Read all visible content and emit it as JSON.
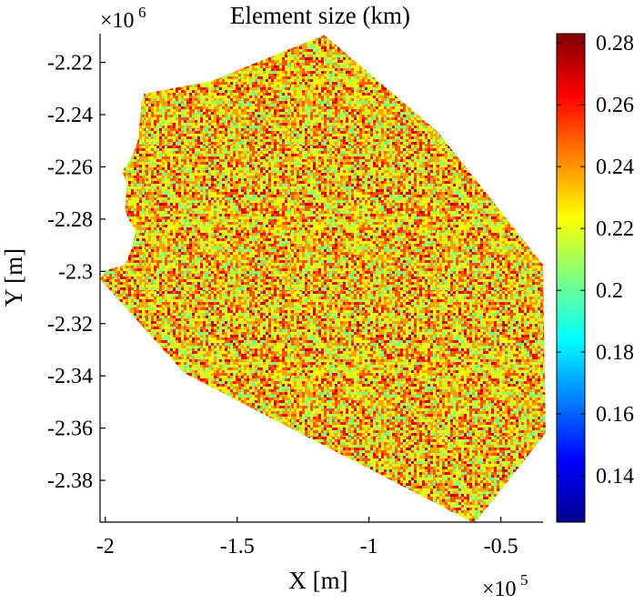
{
  "chart_data": {
    "type": "heatmap",
    "title": "Element size (km)",
    "xlabel": "X [m]",
    "ylabel": "Y [m]",
    "x_multiplier": {
      "base": "×10",
      "power": "5"
    },
    "y_multiplier": {
      "base": "×10",
      "power": "6"
    },
    "xlim": [
      -2.02,
      -0.34
    ],
    "ylim": [
      -2.396,
      -2.209
    ],
    "x_ticks": [
      {
        "value": -2.0,
        "label": "-2"
      },
      {
        "value": -1.5,
        "label": "-1.5"
      },
      {
        "value": -1.0,
        "label": "-1"
      },
      {
        "value": -0.5,
        "label": "-0.5"
      }
    ],
    "y_ticks": [
      {
        "value": -2.22,
        "label": "-2.22"
      },
      {
        "value": -2.24,
        "label": "-2.24"
      },
      {
        "value": -2.26,
        "label": "-2.26"
      },
      {
        "value": -2.28,
        "label": "-2.28"
      },
      {
        "value": -2.3,
        "label": "-2.3"
      },
      {
        "value": -2.32,
        "label": "-2.32"
      },
      {
        "value": -2.34,
        "label": "-2.34"
      },
      {
        "value": -2.36,
        "label": "-2.36"
      },
      {
        "value": -2.38,
        "label": "-2.38"
      }
    ],
    "colorbar": {
      "colormap": "jet",
      "range": [
        0.125,
        0.283
      ],
      "ticks": [
        {
          "value": 0.14,
          "label": "0.14"
        },
        {
          "value": 0.16,
          "label": "0.16"
        },
        {
          "value": 0.18,
          "label": "0.18"
        },
        {
          "value": 0.2,
          "label": "0.2"
        },
        {
          "value": 0.22,
          "label": "0.22"
        },
        {
          "value": 0.24,
          "label": "0.24"
        },
        {
          "value": 0.26,
          "label": "0.26"
        },
        {
          "value": 0.28,
          "label": "0.28"
        }
      ]
    },
    "domain_outline": [
      [
        -1.17,
        -2.2095
      ],
      [
        -0.74,
        -2.2465
      ],
      [
        -0.34,
        -2.2975
      ],
      [
        -0.33,
        -2.362
      ],
      [
        -0.6,
        -2.3965
      ],
      [
        -1.7,
        -2.339
      ],
      [
        -2.02,
        -2.303
      ],
      [
        -1.995,
        -2.2995
      ],
      [
        -1.925,
        -2.2975
      ],
      [
        -1.895,
        -2.29
      ],
      [
        -1.887,
        -2.284
      ],
      [
        -1.915,
        -2.2795
      ],
      [
        -1.925,
        -2.276
      ],
      [
        -1.918,
        -2.266
      ],
      [
        -1.935,
        -2.262
      ],
      [
        -1.895,
        -2.2552
      ],
      [
        -1.875,
        -2.2495
      ],
      [
        -1.868,
        -2.241
      ],
      [
        -1.862,
        -2.235
      ],
      [
        -1.853,
        -2.232
      ],
      [
        -1.6,
        -2.2272
      ]
    ],
    "value_distribution": [
      {
        "value": 0.205,
        "weight": 0.12
      },
      {
        "value": 0.215,
        "weight": 0.18
      },
      {
        "value": 0.225,
        "weight": 0.2
      },
      {
        "value": 0.238,
        "weight": 0.22
      },
      {
        "value": 0.25,
        "weight": 0.16
      },
      {
        "value": 0.262,
        "weight": 0.08
      },
      {
        "value": 0.272,
        "weight": 0.04
      }
    ]
  }
}
